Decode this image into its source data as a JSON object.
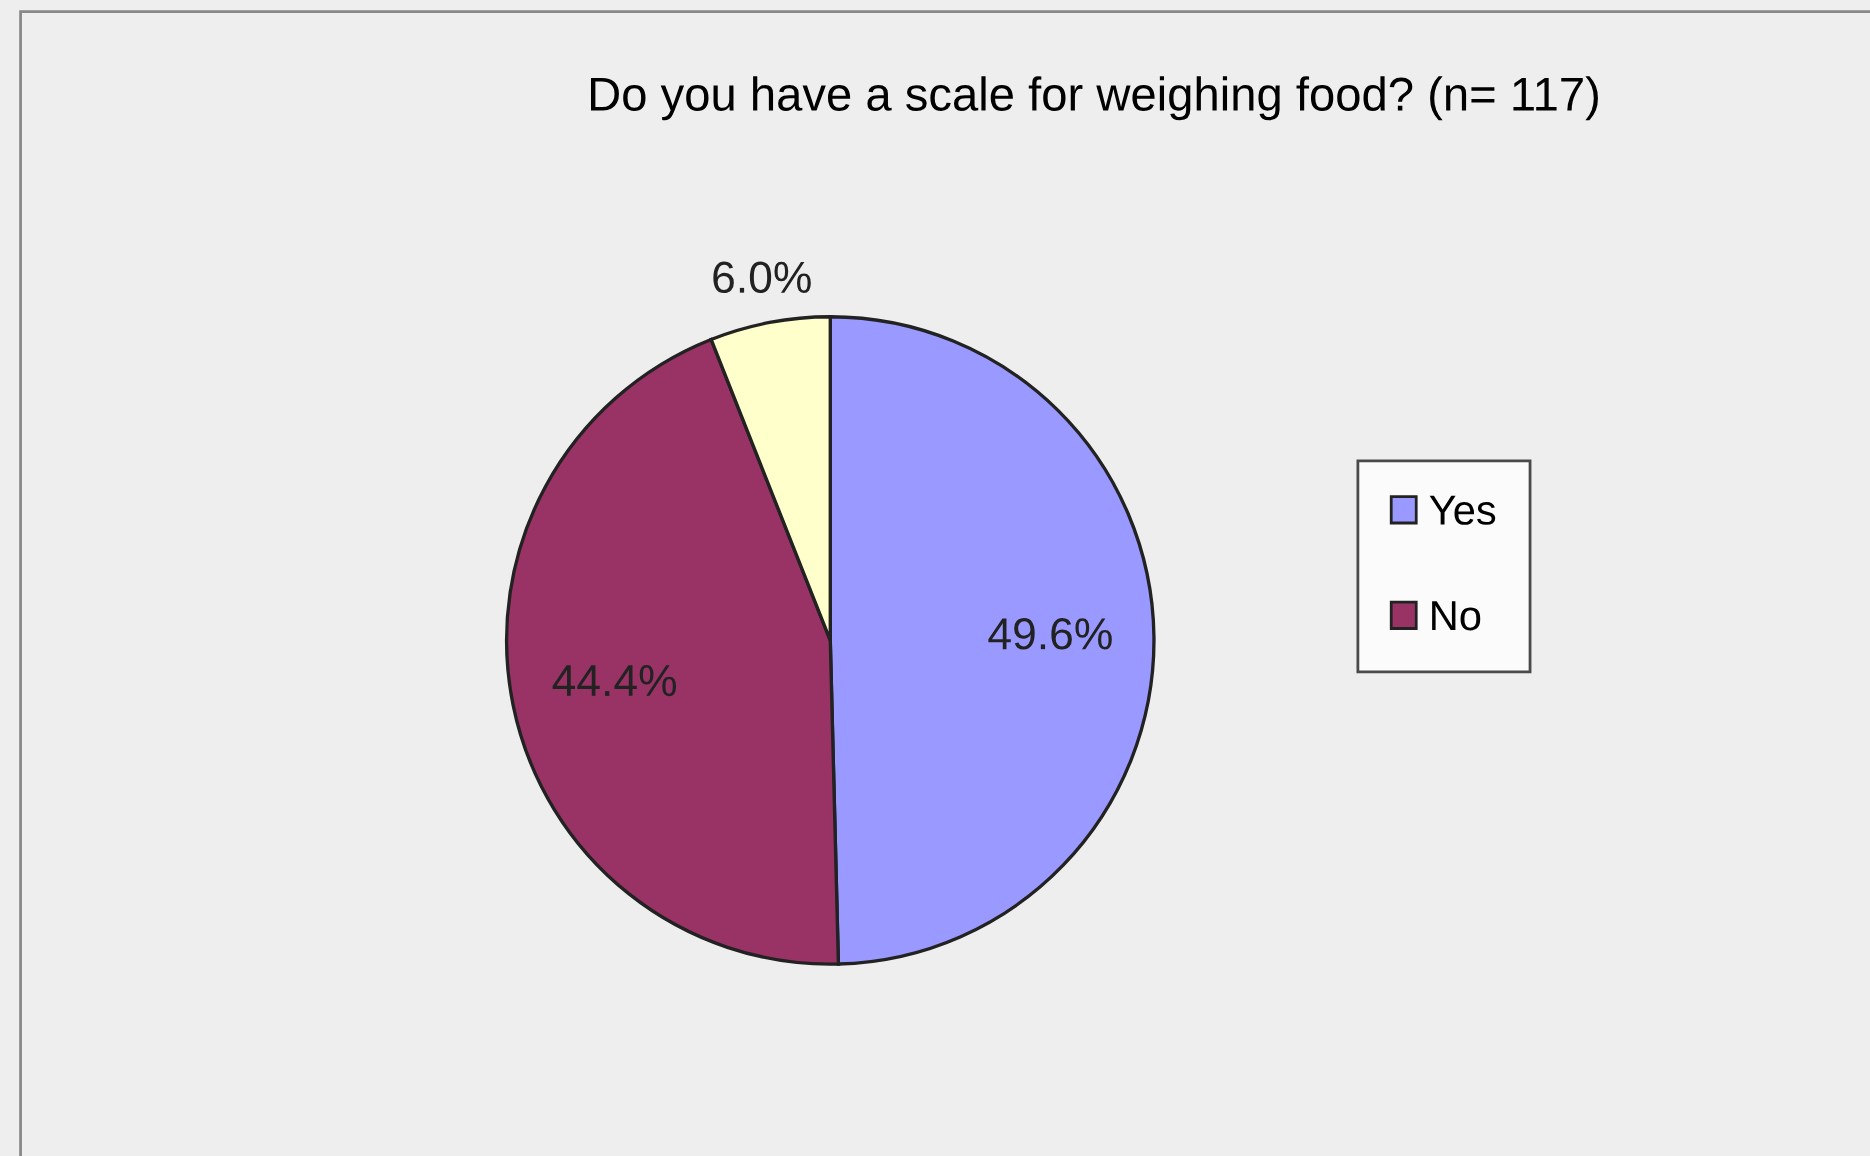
{
  "chart_data": {
    "type": "pie",
    "title": "Do you have a scale for weighing food? (n= 117)",
    "categories": [
      "Yes",
      "No",
      null
    ],
    "values": [
      49.6,
      44.4,
      6.0
    ],
    "value_labels": [
      "49.6%",
      "44.4%",
      "6.0%"
    ],
    "colors": [
      "#9999ff",
      "#993366",
      "#ffffcc"
    ],
    "legend": "right"
  }
}
